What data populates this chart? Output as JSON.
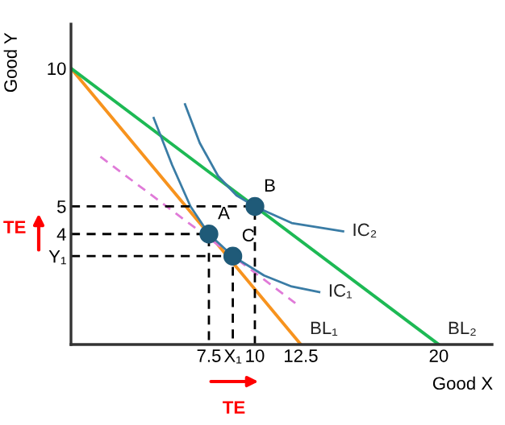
{
  "chart_data": {
    "type": "line",
    "xlabel": "Good X",
    "ylabel": "Good Y",
    "xlim": [
      0,
      22.9
    ],
    "ylim": [
      0,
      11.6
    ],
    "xticks": [
      7.5,
      {
        "value": 8.8,
        "label": "X₁"
      },
      10,
      12.5,
      20
    ],
    "yticks": [
      {
        "value": 3.2,
        "label": "Y₁"
      },
      4,
      5,
      10
    ],
    "grid": false,
    "legend": false,
    "series": [
      {
        "name": "BL₁",
        "color": "#f7931e",
        "x": [
          0,
          12.5
        ],
        "values": [
          10,
          0
        ]
      },
      {
        "name": "BL₂",
        "color": "#1db954",
        "x": [
          0,
          20
        ],
        "values": [
          10,
          0
        ]
      },
      {
        "color": "#e07ad8",
        "line_style": "dashed",
        "x": [
          1.6,
          12.2
        ],
        "values": [
          6.8,
          1.5
        ]
      },
      {
        "name": "IC₁",
        "color": "#3a7ca5",
        "x": [
          4.5,
          5.5,
          6.5,
          7.5,
          8.8,
          10.5,
          12,
          13.5
        ],
        "values": [
          8.2,
          6.5,
          5.0,
          4.0,
          3.2,
          2.5,
          2.1,
          1.9
        ]
      },
      {
        "name": "IC₂",
        "color": "#3a7ca5",
        "x": [
          6.2,
          7,
          8,
          9,
          10,
          12,
          14.8
        ],
        "values": [
          8.7,
          7.3,
          6.1,
          5.4,
          5.0,
          4.4,
          4.1
        ]
      },
      {
        "color": "#000000",
        "line_style": "dashed",
        "x": [
          0,
          7.5,
          7.5
        ],
        "values": [
          4,
          4,
          0
        ]
      },
      {
        "color": "#000000",
        "line_style": "dashed",
        "x": [
          0,
          10,
          10
        ],
        "values": [
          5,
          5,
          0
        ]
      },
      {
        "color": "#000000",
        "line_style": "dashed",
        "x": [
          0,
          8.8,
          8.8
        ],
        "values": [
          3.2,
          3.2,
          0
        ]
      },
      {
        "type": "scatter",
        "color": "#1f5a78",
        "marker": "circle",
        "x": [
          7.5,
          10,
          8.8
        ],
        "values": [
          4,
          5,
          3.2
        ]
      }
    ],
    "annotations": [
      {
        "text": "A",
        "x": 7.5,
        "y": 4
      },
      {
        "text": "B",
        "x": 10,
        "y": 5
      },
      {
        "text": "C",
        "x": 8.8,
        "y": 3.2
      },
      "TE",
      "TE"
    ]
  }
}
